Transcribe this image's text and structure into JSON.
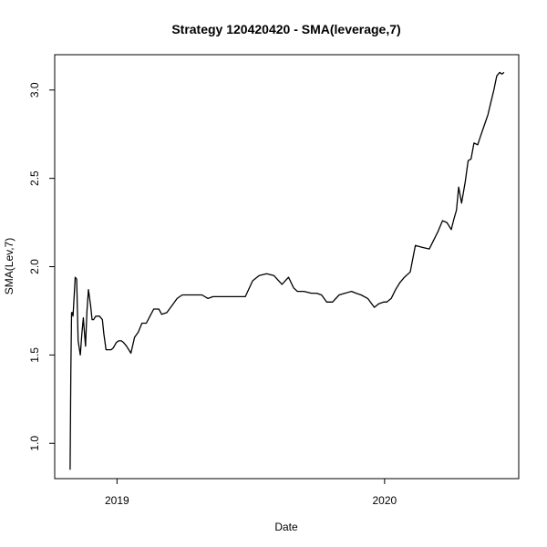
{
  "chart_data": {
    "type": "line",
    "title": "Strategy 120420420 - SMA(leverage,7)",
    "xlabel": "Date",
    "ylabel": "SMA(Lev,7)",
    "x_ticks": [
      {
        "label": "2019",
        "date": "2019-01-01"
      },
      {
        "label": "2020",
        "date": "2020-01-01"
      }
    ],
    "y_ticks": [
      "1.0",
      "1.5",
      "2.0",
      "2.5",
      "3.0"
    ],
    "xlim": [
      "2018-10-08",
      "2020-07-02"
    ],
    "ylim": [
      0.8,
      3.2
    ],
    "grid": false,
    "series": [
      {
        "x": [
          "2018-10-29",
          "2018-10-30",
          "2018-10-31",
          "2018-11-01",
          "2018-11-02",
          "2018-11-05",
          "2018-11-07",
          "2018-11-09",
          "2018-11-12",
          "2018-11-14",
          "2018-11-16",
          "2018-11-19",
          "2018-11-21",
          "2018-11-23",
          "2018-11-26",
          "2018-11-28",
          "2018-11-30",
          "2018-12-03",
          "2018-12-06",
          "2018-12-08",
          "2018-12-10",
          "2018-12-12",
          "2018-12-14",
          "2018-12-17",
          "2018-12-20",
          "2018-12-24",
          "2018-12-27",
          "2018-12-31",
          "2019-01-03",
          "2019-01-07",
          "2019-01-10",
          "2019-01-14",
          "2019-01-20",
          "2019-01-25",
          "2019-01-30",
          "2019-02-04",
          "2019-02-10",
          "2019-02-15",
          "2019-02-20",
          "2019-02-27",
          "2019-03-03",
          "2019-03-10",
          "2019-03-17",
          "2019-03-24",
          "2019-03-31",
          "2019-04-07",
          "2019-04-14",
          "2019-04-21",
          "2019-04-27",
          "2019-05-05",
          "2019-05-12",
          "2019-05-20",
          "2019-05-27",
          "2019-06-05",
          "2019-06-15",
          "2019-06-25",
          "2019-07-05",
          "2019-07-14",
          "2019-07-24",
          "2019-08-03",
          "2019-08-14",
          "2019-08-23",
          "2019-08-30",
          "2019-09-04",
          "2019-09-13",
          "2019-09-23",
          "2019-09-30",
          "2019-10-07",
          "2019-10-14",
          "2019-10-22",
          "2019-10-31",
          "2019-11-08",
          "2019-11-17",
          "2019-11-23",
          "2019-11-30",
          "2019-12-09",
          "2019-12-18",
          "2019-12-24",
          "2019-12-31",
          "2020-01-04",
          "2020-01-10",
          "2020-01-16",
          "2020-01-22",
          "2020-01-28",
          "2020-02-05",
          "2020-02-12",
          "2020-02-21",
          "2020-03-02",
          "2020-03-08",
          "2020-03-14",
          "2020-03-20",
          "2020-03-26",
          "2020-04-01",
          "2020-04-04",
          "2020-04-08",
          "2020-04-11",
          "2020-04-15",
          "2020-04-20",
          "2020-04-24",
          "2020-04-28",
          "2020-05-02",
          "2020-05-07",
          "2020-05-11",
          "2020-05-16",
          "2020-05-21",
          "2020-05-25",
          "2020-05-29",
          "2020-06-02",
          "2020-06-06",
          "2020-06-09",
          "2020-06-12"
        ],
        "values": [
          0.85,
          1.4,
          1.74,
          1.74,
          1.72,
          1.94,
          1.93,
          1.58,
          1.5,
          1.62,
          1.71,
          1.55,
          1.75,
          1.87,
          1.78,
          1.7,
          1.7,
          1.72,
          1.72,
          1.72,
          1.71,
          1.7,
          1.62,
          1.53,
          1.53,
          1.53,
          1.54,
          1.57,
          1.58,
          1.58,
          1.57,
          1.55,
          1.51,
          1.6,
          1.63,
          1.68,
          1.68,
          1.72,
          1.76,
          1.76,
          1.73,
          1.74,
          1.78,
          1.82,
          1.84,
          1.84,
          1.84,
          1.84,
          1.84,
          1.82,
          1.83,
          1.83,
          1.83,
          1.83,
          1.83,
          1.83,
          1.92,
          1.95,
          1.96,
          1.95,
          1.9,
          1.94,
          1.88,
          1.86,
          1.86,
          1.85,
          1.85,
          1.84,
          1.8,
          1.8,
          1.84,
          1.85,
          1.86,
          1.85,
          1.84,
          1.82,
          1.77,
          1.79,
          1.8,
          1.8,
          1.82,
          1.87,
          1.91,
          1.94,
          1.97,
          2.12,
          2.11,
          2.1,
          2.15,
          2.2,
          2.26,
          2.25,
          2.21,
          2.26,
          2.32,
          2.45,
          2.36,
          2.48,
          2.6,
          2.61,
          2.7,
          2.69,
          2.74,
          2.8,
          2.86,
          2.93,
          3.0,
          3.08,
          3.1,
          3.09,
          3.1
        ]
      }
    ]
  }
}
